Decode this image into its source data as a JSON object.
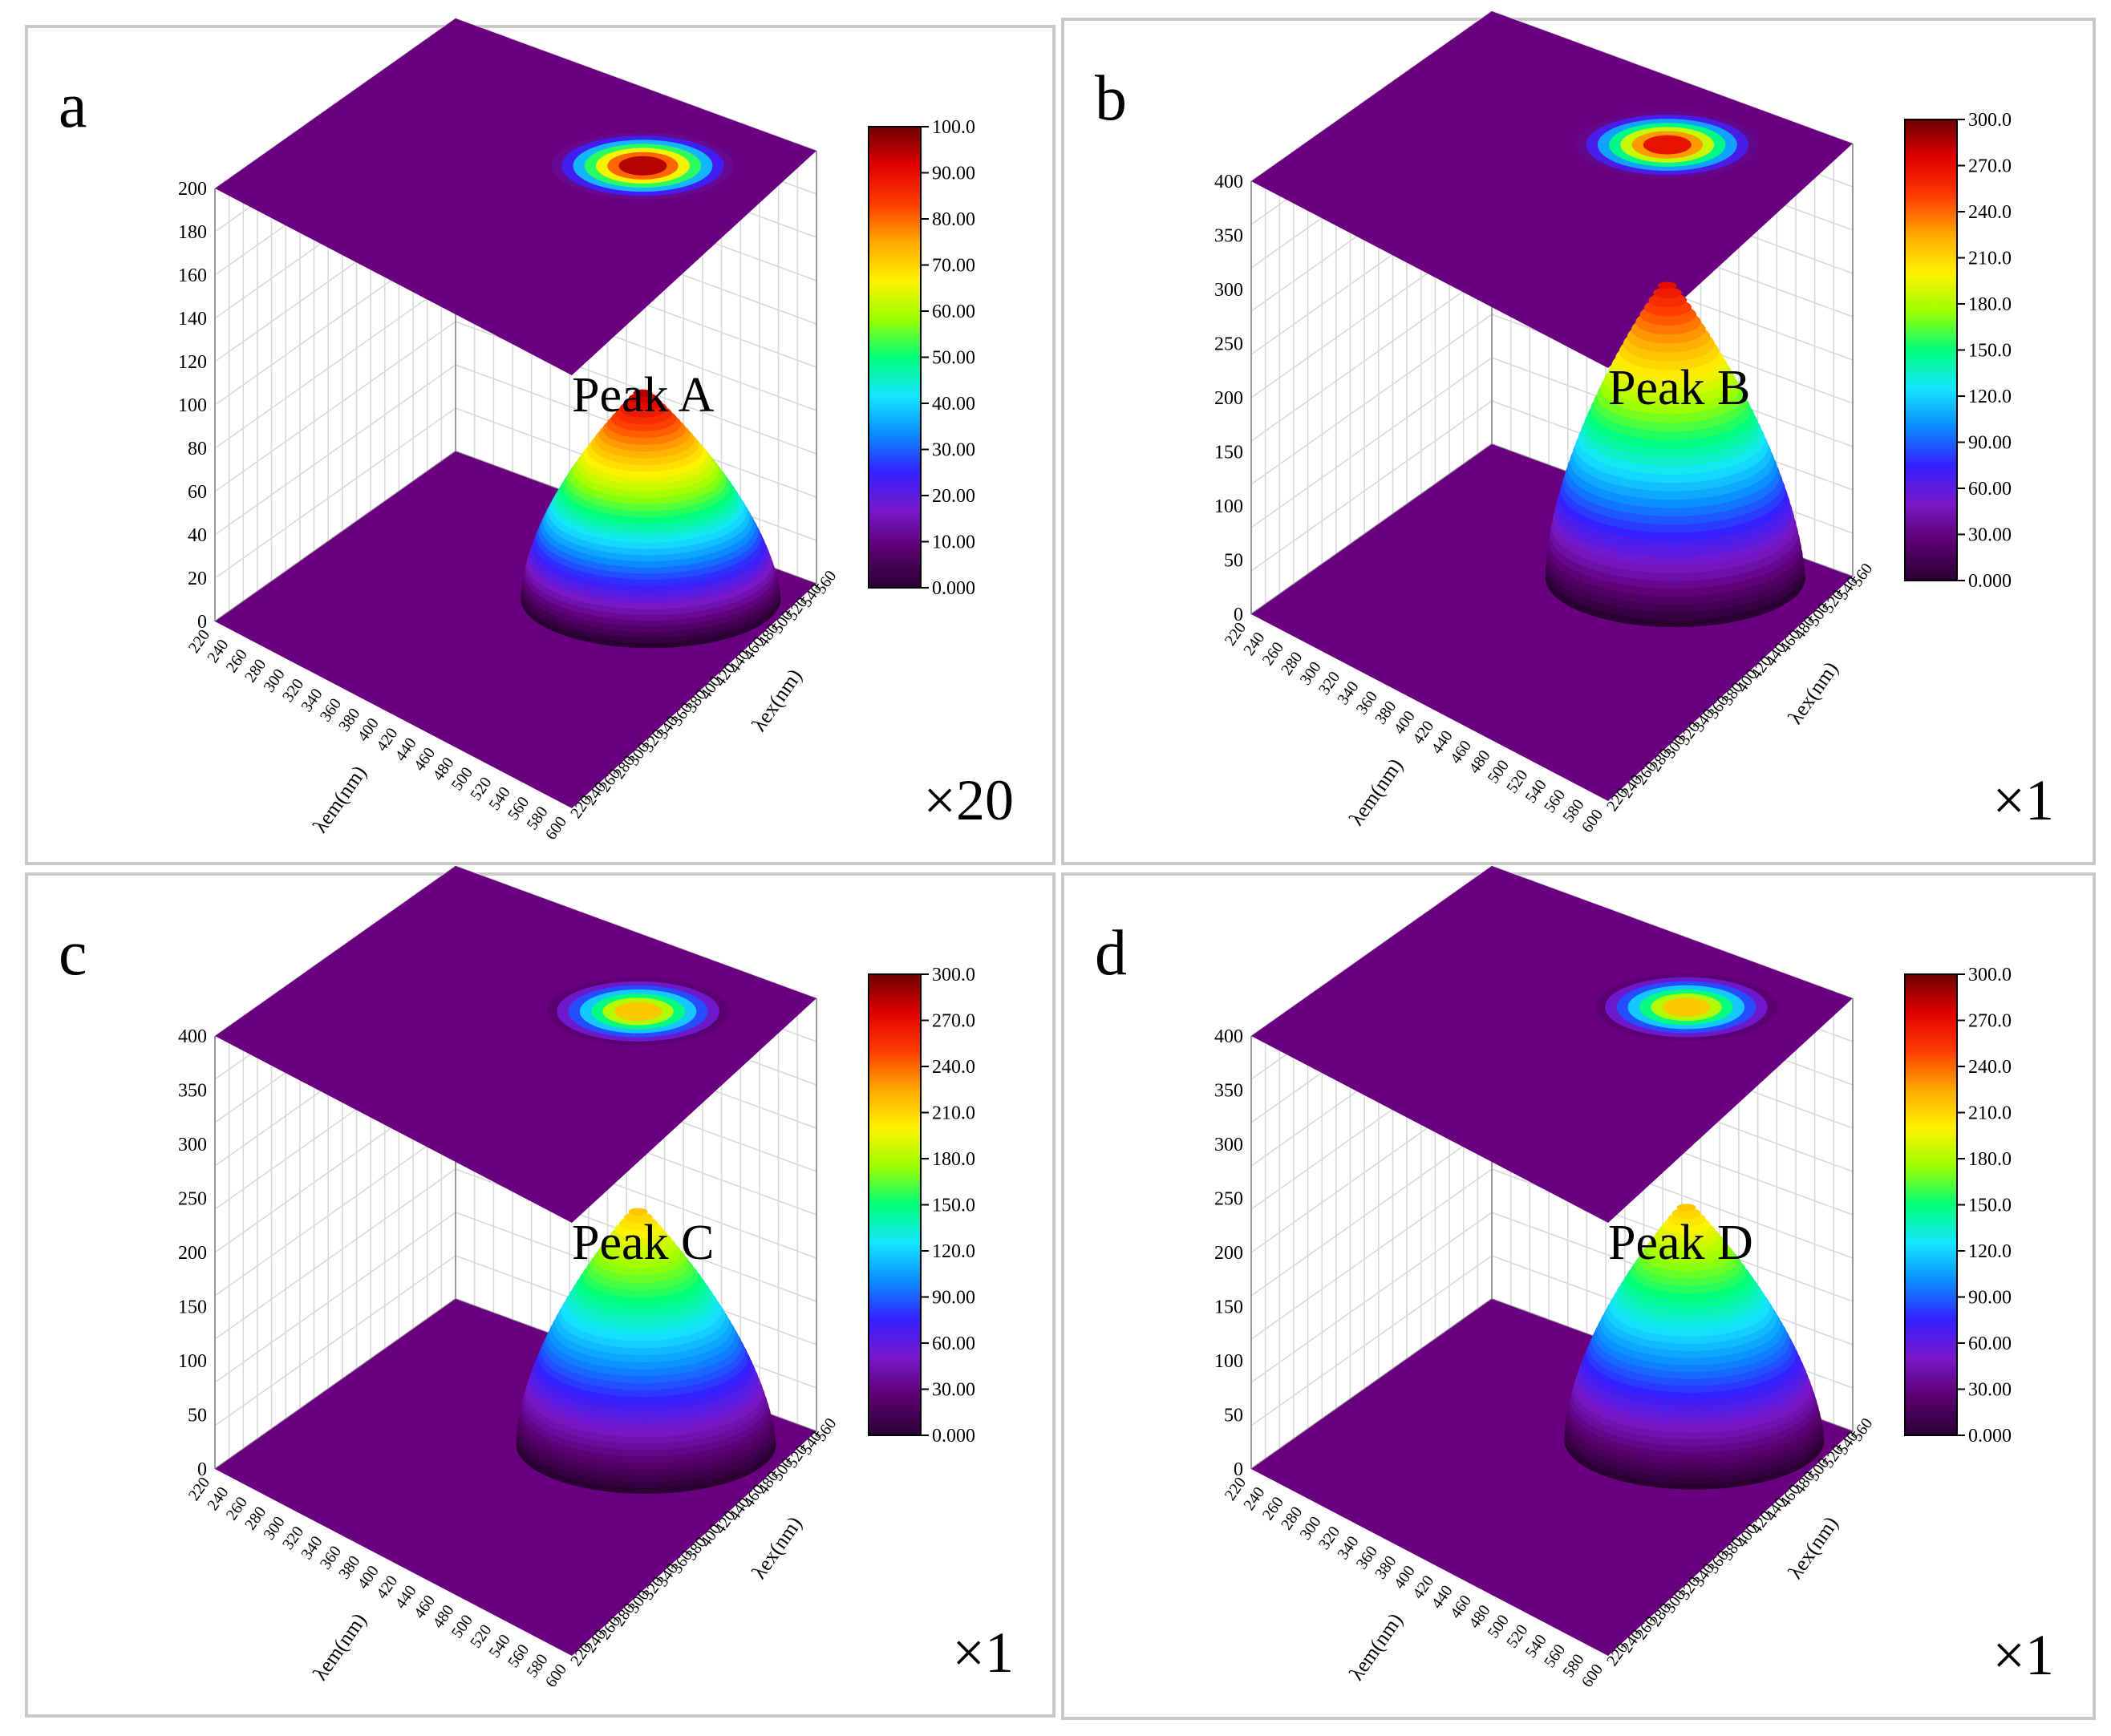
{
  "figure": {
    "colorscale": [
      "#2a0033",
      "#5a0070",
      "#7a18c8",
      "#3420ff",
      "#0a8cff",
      "#16e6ff",
      "#00ff7a",
      "#9cff00",
      "#fff200",
      "#ffa800",
      "#ff3c00",
      "#e00000",
      "#6e0000"
    ],
    "base_color": "#6a0080"
  },
  "chart_data": [
    {
      "type": "surface3d",
      "panel_label": "a",
      "peak_label": "Peak A",
      "scale_label": "×20",
      "xlabel": "λem(nm)",
      "ylabel": "λex(nm)",
      "x_ticks": [
        "220",
        "240",
        "260",
        "280",
        "300",
        "320",
        "340",
        "360",
        "380",
        "400",
        "420",
        "440",
        "460",
        "480",
        "500",
        "520",
        "540",
        "560",
        "580",
        "600"
      ],
      "y_ticks": [
        "220",
        "240",
        "260",
        "280",
        "300",
        "320",
        "340",
        "360",
        "380",
        "400",
        "420",
        "440",
        "460",
        "480",
        "500",
        "520",
        "540",
        "560"
      ],
      "z_ticks": [
        "20",
        "40",
        "60",
        "80",
        "100",
        "120",
        "140",
        "160",
        "180",
        "200"
      ],
      "zlim": [
        0,
        200
      ],
      "colorbar_ticks": [
        "100.0",
        "90.00",
        "80.00",
        "70.00",
        "60.00",
        "50.00",
        "40.00",
        "30.00",
        "20.00",
        "10.00",
        "0.000"
      ],
      "colorbar_range": [
        0,
        100
      ],
      "peak": {
        "em": 485,
        "ex": 470,
        "intensity": 95
      }
    },
    {
      "type": "surface3d",
      "panel_label": "b",
      "peak_label": "Peak B",
      "scale_label": "×1",
      "xlabel": "λem(nm)",
      "ylabel": "λex(nm)",
      "x_ticks": [
        "220",
        "240",
        "260",
        "280",
        "300",
        "320",
        "340",
        "360",
        "380",
        "400",
        "420",
        "440",
        "460",
        "480",
        "500",
        "520",
        "540",
        "560",
        "580",
        "600"
      ],
      "y_ticks": [
        "220",
        "240",
        "260",
        "280",
        "300",
        "320",
        "340",
        "360",
        "380",
        "400",
        "420",
        "440",
        "460",
        "480",
        "500",
        "520",
        "540",
        "560"
      ],
      "z_ticks": [
        "50",
        "100",
        "150",
        "200",
        "250",
        "300",
        "350",
        "400"
      ],
      "zlim": [
        0,
        400
      ],
      "colorbar_ticks": [
        "300.0",
        "270.0",
        "240.0",
        "210.0",
        "180.0",
        "150.0",
        "120.0",
        "90.00",
        "60.00",
        "30.00",
        "0.000"
      ],
      "colorbar_range": [
        0,
        300
      ],
      "peak": {
        "em": 465,
        "ex": 480,
        "intensity": 270
      }
    },
    {
      "type": "surface3d",
      "panel_label": "c",
      "peak_label": "Peak C",
      "scale_label": "×1",
      "xlabel": "λem(nm)",
      "ylabel": "λex(nm)",
      "x_ticks": [
        "220",
        "240",
        "260",
        "280",
        "300",
        "320",
        "340",
        "360",
        "380",
        "400",
        "420",
        "440",
        "460",
        "480",
        "500",
        "520",
        "540",
        "560",
        "580",
        "600"
      ],
      "y_ticks": [
        "220",
        "240",
        "260",
        "280",
        "300",
        "320",
        "340",
        "360",
        "380",
        "400",
        "420",
        "440",
        "460",
        "480",
        "500",
        "520",
        "540",
        "560"
      ],
      "z_ticks": [
        "50",
        "100",
        "150",
        "200",
        "250",
        "300",
        "350",
        "400"
      ],
      "zlim": [
        0,
        400
      ],
      "colorbar_ticks": [
        "300.0",
        "270.0",
        "240.0",
        "210.0",
        "180.0",
        "150.0",
        "120.0",
        "90.00",
        "60.00",
        "30.00",
        "0.000"
      ],
      "colorbar_range": [
        0,
        300
      ],
      "peak": {
        "em": 480,
        "ex": 470,
        "intensity": 215
      }
    },
    {
      "type": "surface3d",
      "panel_label": "d",
      "peak_label": "Peak D",
      "scale_label": "×1",
      "xlabel": "λem(nm)",
      "ylabel": "λex(nm)",
      "x_ticks": [
        "220",
        "240",
        "260",
        "280",
        "300",
        "320",
        "340",
        "360",
        "380",
        "400",
        "420",
        "440",
        "460",
        "480",
        "500",
        "520",
        "540",
        "560",
        "580",
        "600"
      ],
      "y_ticks": [
        "220",
        "240",
        "260",
        "280",
        "300",
        "320",
        "340",
        "360",
        "380",
        "400",
        "420",
        "440",
        "460",
        "480",
        "500",
        "520",
        "540",
        "560"
      ],
      "z_ticks": [
        "50",
        "100",
        "150",
        "200",
        "250",
        "300",
        "350",
        "400"
      ],
      "zlim": [
        0,
        400
      ],
      "colorbar_ticks": [
        "300.0",
        "270.0",
        "240.0",
        "210.0",
        "180.0",
        "150.0",
        "120.0",
        "90.00",
        "60.00",
        "30.00",
        "0.000"
      ],
      "colorbar_range": [
        0,
        300
      ],
      "peak": {
        "em": 485,
        "ex": 480,
        "intensity": 215
      }
    }
  ]
}
